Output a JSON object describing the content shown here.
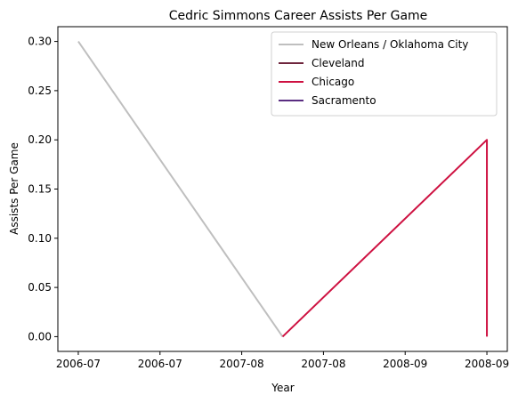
{
  "chart_data": {
    "type": "line",
    "title": "Cedric Simmons Career Assists Per Game",
    "xlabel": "Year",
    "ylabel": "Assists Per Game",
    "x_tick_labels": [
      "2006-07",
      "2006-07",
      "2007-08",
      "2007-08",
      "2008-09",
      "2008-09"
    ],
    "y_tick_labels": [
      "0.00",
      "0.05",
      "0.10",
      "0.15",
      "0.20",
      "0.25",
      "0.30"
    ],
    "y_ticks": [
      0.0,
      0.05,
      0.1,
      0.15,
      0.2,
      0.25,
      0.3
    ],
    "ylim": [
      -0.015,
      0.315
    ],
    "xlim": [
      -0.1,
      2.1
    ],
    "grid": false,
    "legend_position": "top-right",
    "series": [
      {
        "name": "New Orleans / Oklahoma City",
        "color": "#bfbfbf",
        "x": [
          0,
          1
        ],
        "y": [
          0.3,
          0.0
        ]
      },
      {
        "name": "Cleveland",
        "color": "#6f263d",
        "x": [],
        "y": []
      },
      {
        "name": "Chicago",
        "color": "#ce1141",
        "x": [
          1,
          2,
          2
        ],
        "y": [
          0.0,
          0.2,
          0.0
        ]
      },
      {
        "name": "Sacramento",
        "color": "#5a2d81",
        "x": [],
        "y": []
      }
    ]
  }
}
